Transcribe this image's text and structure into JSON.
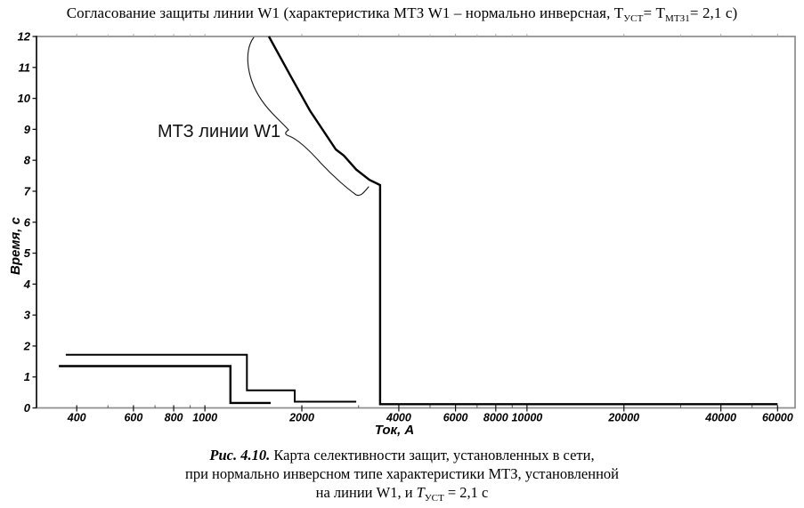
{
  "title": {
    "prefix": "Согласование защиты линии W1 (характеристика МТЗ W1 – нормально инверсная, Т",
    "sub1": "УСТ",
    "mid": "= Т",
    "sub2": "МТЗ1",
    "suffix": "= 2,1 с)"
  },
  "caption": {
    "fig": "Рис. 4.10.",
    "line1": " Карта селективности защит, установленных в сети,",
    "line2": "при нормально инверсном типе характеристики МТЗ, установленной",
    "line3_pre": "на линии W1, и ",
    "line3_T": "Т",
    "line3_sub": "УСТ",
    "line3_post": " = 2,1 с"
  },
  "chart_data": {
    "type": "line",
    "title": "Согласование защиты линии W1 (характеристика МТЗ W1 – нормально инверсная, Туст= Тмтз1= 2,1 с)",
    "xlabel": "Ток, А",
    "ylabel": "Время, с",
    "x_scale": "log",
    "xlim": [
      300,
      68000
    ],
    "ylim": [
      0,
      12
    ],
    "x_ticks": [
      400,
      600,
      800,
      1000,
      2000,
      4000,
      6000,
      8000,
      10000,
      20000,
      40000,
      60000
    ],
    "y_ticks": [
      0,
      1,
      2,
      3,
      4,
      5,
      6,
      7,
      8,
      9,
      10,
      11,
      12
    ],
    "grid": false,
    "legend": false,
    "line_color": "#000000",
    "frame_color": "#8c8c8c",
    "annotation": {
      "label": "МТЗ линии W1"
    },
    "series": [
      {
        "id": "mtz-w1-inverse",
        "lw": 2.4,
        "points": [
          [
            1580,
            12
          ],
          [
            1850,
            10.7
          ],
          [
            2120,
            9.6
          ],
          [
            2550,
            8.35
          ],
          [
            2700,
            8.15
          ],
          [
            2950,
            7.7
          ],
          [
            3240,
            7.37
          ],
          [
            3500,
            7.2
          ],
          [
            3500,
            0.12
          ],
          [
            60000,
            0.12
          ]
        ]
      },
      {
        "id": "step-curve-upper",
        "lw": 2.0,
        "points": [
          [
            370,
            1.72
          ],
          [
            1350,
            1.72
          ],
          [
            1350,
            0.57
          ],
          [
            1900,
            0.57
          ],
          [
            1900,
            0.2
          ],
          [
            2950,
            0.2
          ]
        ]
      },
      {
        "id": "step-curve-lower",
        "lw": 2.4,
        "points": [
          [
            352,
            1.35
          ],
          [
            1200,
            1.35
          ],
          [
            1200,
            0.16
          ],
          [
            1600,
            0.16
          ]
        ]
      }
    ]
  }
}
